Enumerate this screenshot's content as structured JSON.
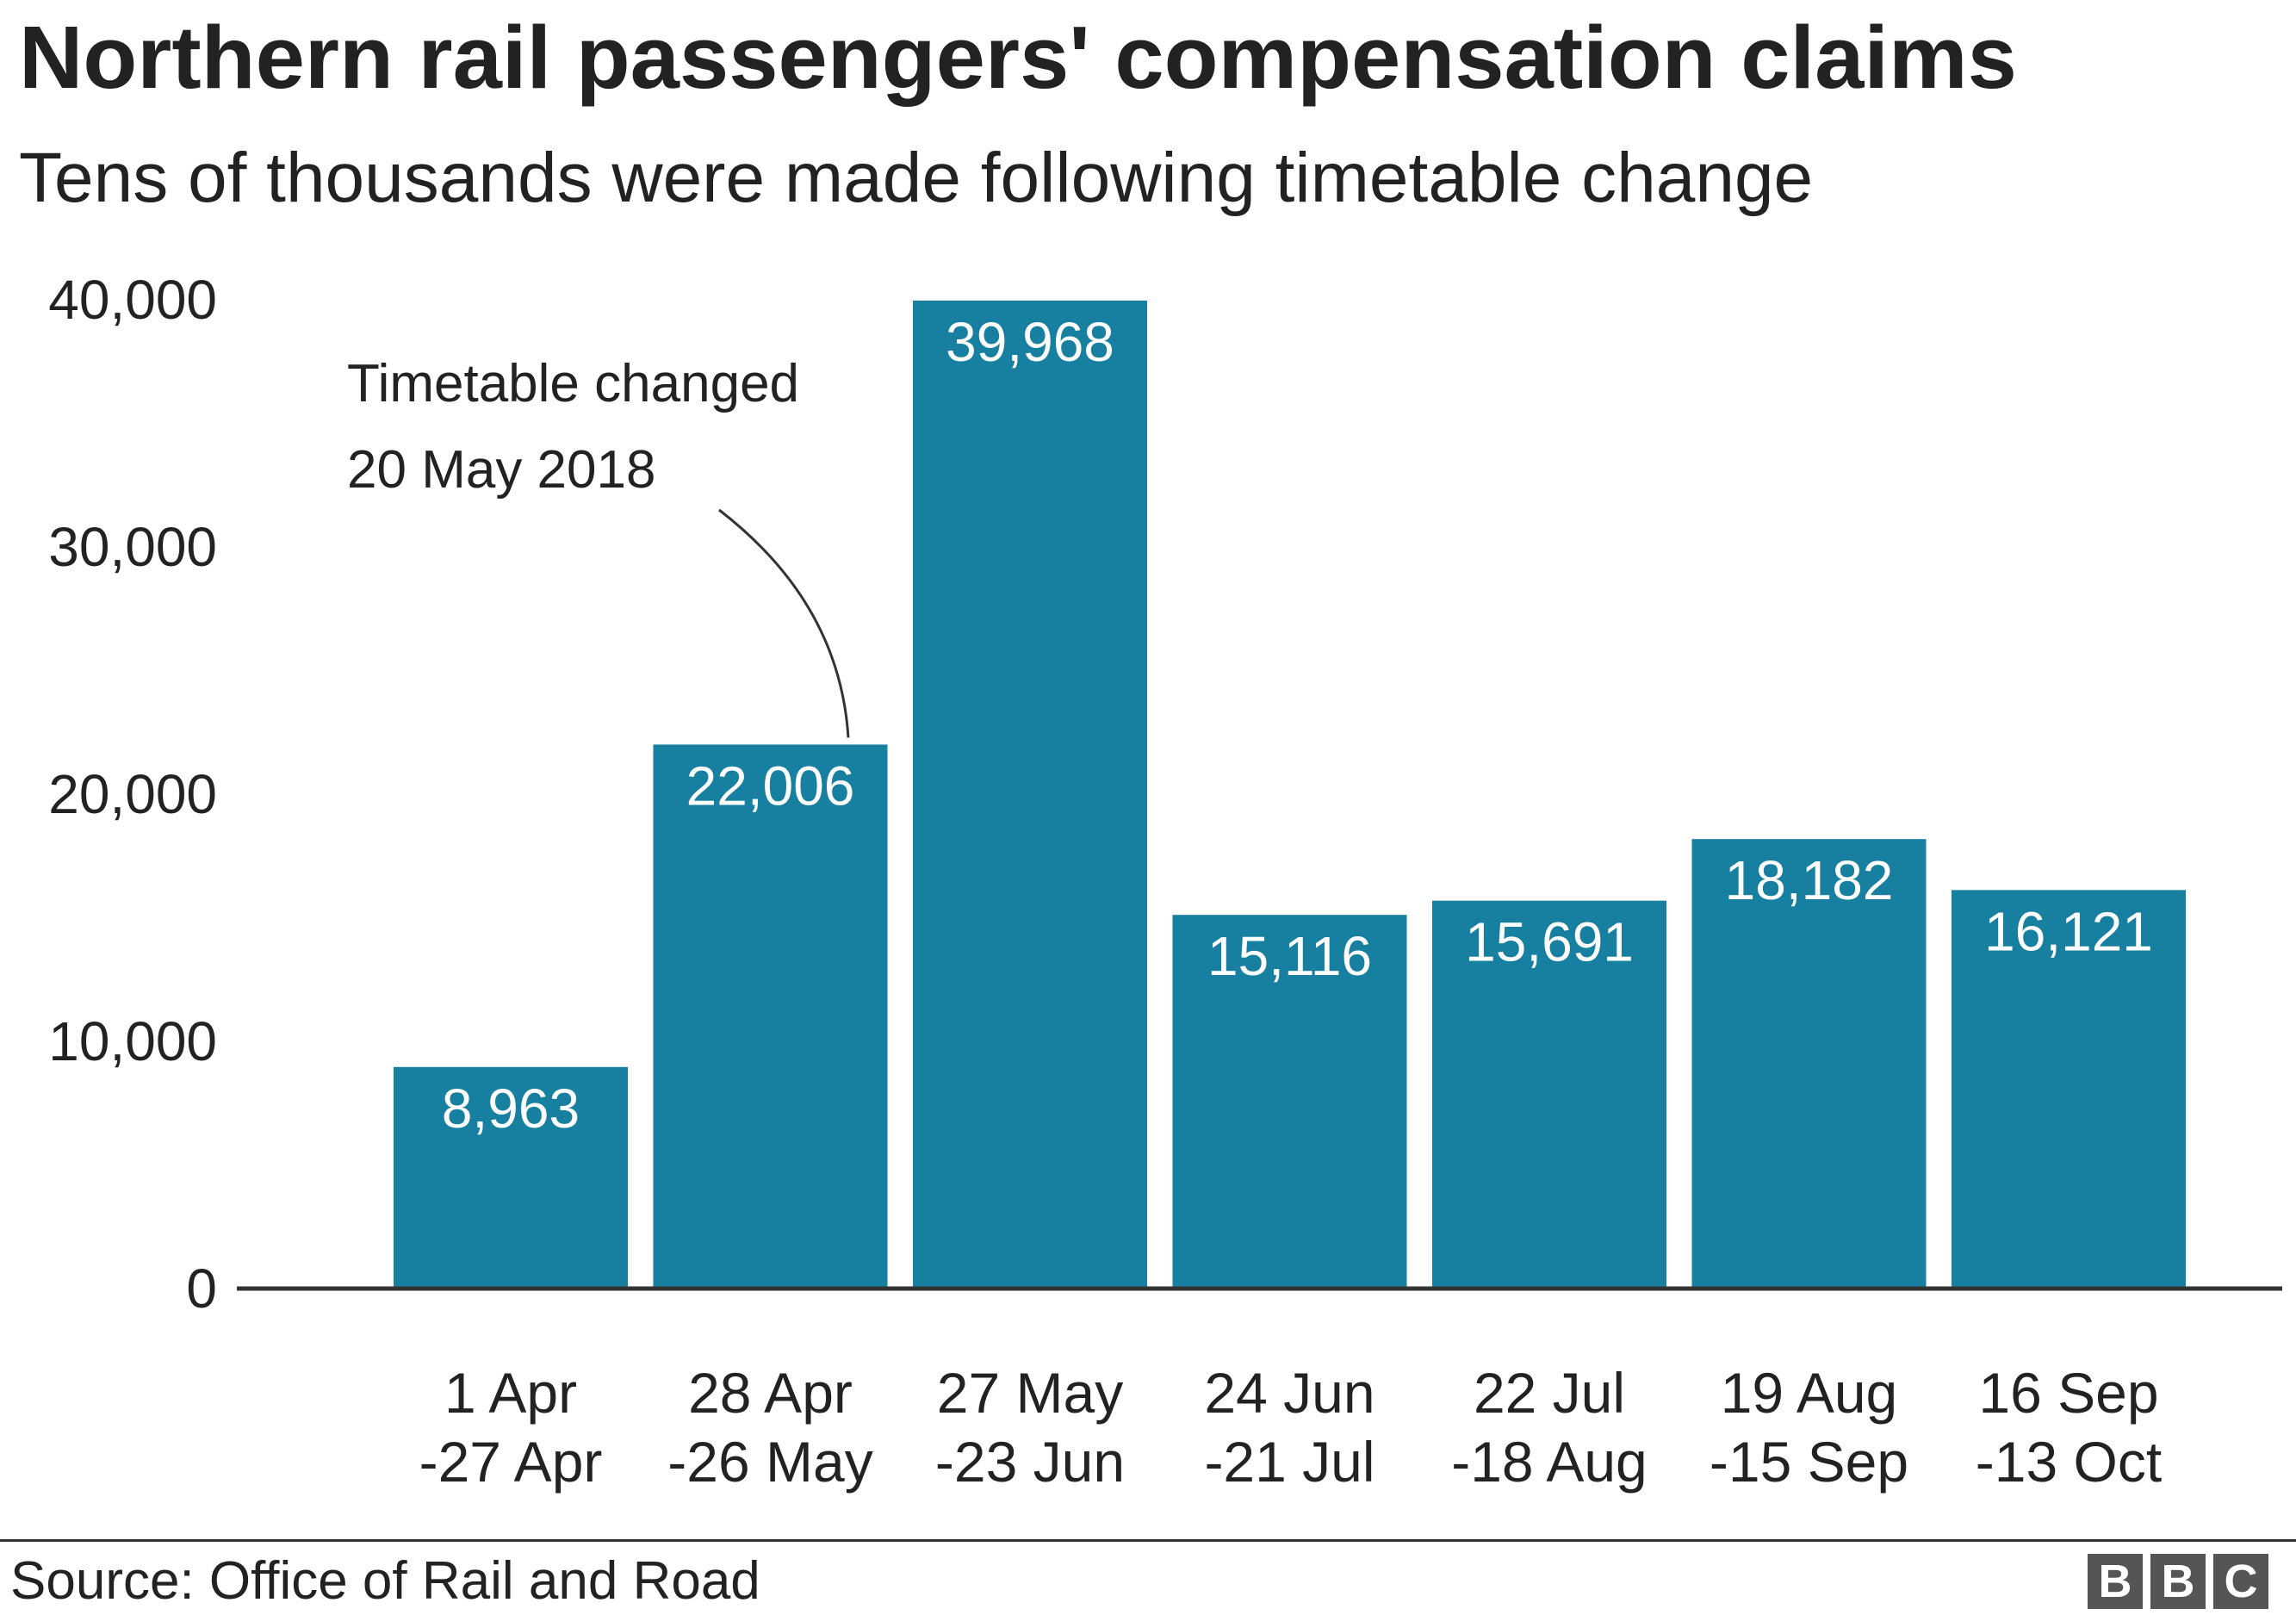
{
  "header": {
    "title": "Northern rail passengers' compensation claims",
    "subtitle": "Tens of thousands were made following timetable change"
  },
  "chart_data": {
    "type": "bar",
    "title": "Northern rail passengers' compensation claims",
    "subtitle": "Tens of thousands were made following timetable change",
    "xlabel": "",
    "ylabel": "",
    "ylim": [
      0,
      40000
    ],
    "yticks": [
      0,
      10000,
      20000,
      30000,
      40000
    ],
    "ytick_labels": [
      "0",
      "10,000",
      "20,000",
      "30,000",
      "40,000"
    ],
    "grid": false,
    "bar_color": "#1780a1",
    "categories": [
      [
        "1 Apr",
        "-27 Apr"
      ],
      [
        "28 Apr",
        "-26 May"
      ],
      [
        "27 May",
        "-23 Jun"
      ],
      [
        "24 Jun",
        "-21 Jul"
      ],
      [
        "22 Jul",
        "-18 Aug"
      ],
      [
        "19 Aug",
        "-15 Sep"
      ],
      [
        "16 Sep",
        "-13 Oct"
      ]
    ],
    "values": [
      8963,
      22006,
      39968,
      15116,
      15691,
      18182,
      16121
    ],
    "value_labels": [
      "8,963",
      "22,006",
      "39,968",
      "15,116",
      "15,691",
      "18,182",
      "16,121"
    ],
    "annotations": [
      {
        "lines": [
          "Timetable changed",
          "20 May 2018"
        ],
        "target_index": 1
      }
    ]
  },
  "footer": {
    "source": "Source: Office of Rail and Road",
    "logo_letters": [
      "B",
      "B",
      "C"
    ]
  },
  "colors": {
    "bar": "#1780a1",
    "text": "#222222",
    "axis": "#333333",
    "logo": "#555555"
  }
}
